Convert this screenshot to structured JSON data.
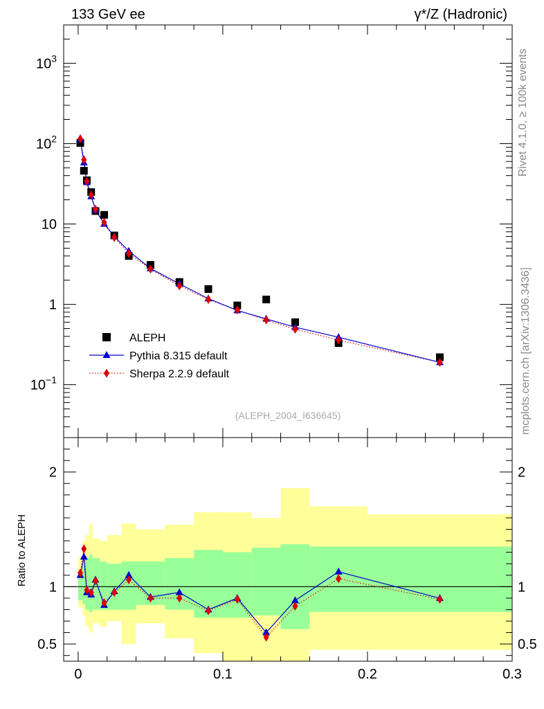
{
  "header": {
    "left": "133 GeV ee",
    "right": "γ*/Z (Hadronic)"
  },
  "side_labels": {
    "rivet": "Rivet 4.1.0, ≥ 100k events",
    "mcplots": "mcplots.cern.ch [arXiv:1306.3436]"
  },
  "analysis_tag": "(ALEPH_2004_I636645)",
  "colors": {
    "data": "#000000",
    "pythia": "#0000cc",
    "sherpa": "#dd0000",
    "band_inner": "#99ff99",
    "band_outer": "#ffff99"
  },
  "chart_data": [
    {
      "type": "line",
      "scale": "log",
      "xlim": [
        -0.01,
        0.3
      ],
      "ylim": [
        0.022,
        3000
      ],
      "y_ticks": [
        "10^-1",
        "1",
        "10",
        "10^2",
        "10^3"
      ],
      "y_tick_values": [
        0.1,
        1,
        10,
        100,
        1000
      ],
      "legend_position": "bottom-left",
      "series": [
        {
          "name": "ALEPH",
          "style": "points",
          "x": [
            0.0015,
            0.004,
            0.006,
            0.009,
            0.012,
            0.018,
            0.025,
            0.035,
            0.05,
            0.07,
            0.09,
            0.11,
            0.13,
            0.15,
            0.18,
            0.25
          ],
          "values": [
            102,
            46,
            35,
            25,
            14.5,
            13,
            7.2,
            4.0,
            3.1,
            1.9,
            1.55,
            0.97,
            1.15,
            0.6,
            0.33,
            0.22
          ]
        },
        {
          "name": "Pythia 8.315 default",
          "style": "line-triangle",
          "x": [
            0.0015,
            0.004,
            0.006,
            0.009,
            0.012,
            0.018,
            0.025,
            0.035,
            0.05,
            0.07,
            0.09,
            0.11,
            0.13,
            0.15,
            0.18,
            0.25
          ],
          "values": [
            112,
            58,
            33,
            22,
            15,
            10,
            7.0,
            4.6,
            2.8,
            1.8,
            1.18,
            0.84,
            0.66,
            0.52,
            0.39,
            0.19
          ]
        },
        {
          "name": "Sherpa 2.2.9 default",
          "style": "dotted-diamond",
          "x": [
            0.0015,
            0.004,
            0.006,
            0.009,
            0.012,
            0.018,
            0.025,
            0.035,
            0.05,
            0.07,
            0.09,
            0.11,
            0.13,
            0.15,
            0.18,
            0.25
          ],
          "values": [
            115,
            63,
            34,
            23,
            15.3,
            10.5,
            6.8,
            4.3,
            2.75,
            1.7,
            1.15,
            0.85,
            0.64,
            0.49,
            0.36,
            0.19
          ]
        }
      ]
    },
    {
      "type": "line",
      "ylabel": "Ratio to ALEPH",
      "xlim": [
        -0.01,
        0.3
      ],
      "ylim": [
        0.35,
        2.3
      ],
      "x_ticks": [
        0,
        0.1,
        0.2,
        0.3
      ],
      "x_tick_labels": [
        "0",
        "0.1",
        "0.2",
        "0.3"
      ],
      "y_ticks": [
        0.5,
        1,
        2
      ],
      "y_tick_labels": [
        "0.5",
        "1",
        "2"
      ],
      "reference_line": 1,
      "bands": {
        "edges": [
          0,
          0.003,
          0.005,
          0.0075,
          0.01,
          0.015,
          0.02,
          0.03,
          0.04,
          0.06,
          0.08,
          0.1,
          0.12,
          0.14,
          0.16,
          0.2,
          0.3
        ],
        "outer_low": [
          0.82,
          0.75,
          0.65,
          0.6,
          0.68,
          0.65,
          0.7,
          0.5,
          0.68,
          0.55,
          0.42,
          0.25,
          0.25,
          0.2,
          0.45,
          0.45
        ],
        "outer_high": [
          1.26,
          1.4,
          1.45,
          1.55,
          1.42,
          1.4,
          1.45,
          1.55,
          1.5,
          1.54,
          1.65,
          1.65,
          1.6,
          1.86,
          1.7,
          1.63
        ],
        "inner_low": [
          0.88,
          0.85,
          0.8,
          0.78,
          0.8,
          0.8,
          0.8,
          0.8,
          0.84,
          0.8,
          0.73,
          0.73,
          0.75,
          0.63,
          0.78,
          0.78
        ],
        "inner_high": [
          1.12,
          1.18,
          1.25,
          1.28,
          1.25,
          1.22,
          1.2,
          1.22,
          1.22,
          1.25,
          1.32,
          1.3,
          1.34,
          1.37,
          1.35,
          1.35
        ]
      },
      "series": [
        {
          "name": "Pythia 8.315 default",
          "x": [
            0.0015,
            0.004,
            0.006,
            0.009,
            0.012,
            0.018,
            0.025,
            0.035,
            0.05,
            0.07,
            0.09,
            0.11,
            0.13,
            0.15,
            0.18,
            0.25
          ],
          "values": [
            1.1,
            1.26,
            0.95,
            0.93,
            1.06,
            0.84,
            0.96,
            1.1,
            0.91,
            0.95,
            0.8,
            0.9,
            0.6,
            0.88,
            1.13,
            0.9
          ]
        },
        {
          "name": "Sherpa 2.2.9 default",
          "x": [
            0.0015,
            0.004,
            0.006,
            0.009,
            0.012,
            0.018,
            0.025,
            0.035,
            0.05,
            0.07,
            0.09,
            0.11,
            0.13,
            0.15,
            0.18,
            0.25
          ],
          "values": [
            1.12,
            1.33,
            0.97,
            0.95,
            1.05,
            0.86,
            0.95,
            1.06,
            0.9,
            0.9,
            0.79,
            0.89,
            0.56,
            0.83,
            1.07,
            0.89
          ]
        }
      ]
    }
  ]
}
